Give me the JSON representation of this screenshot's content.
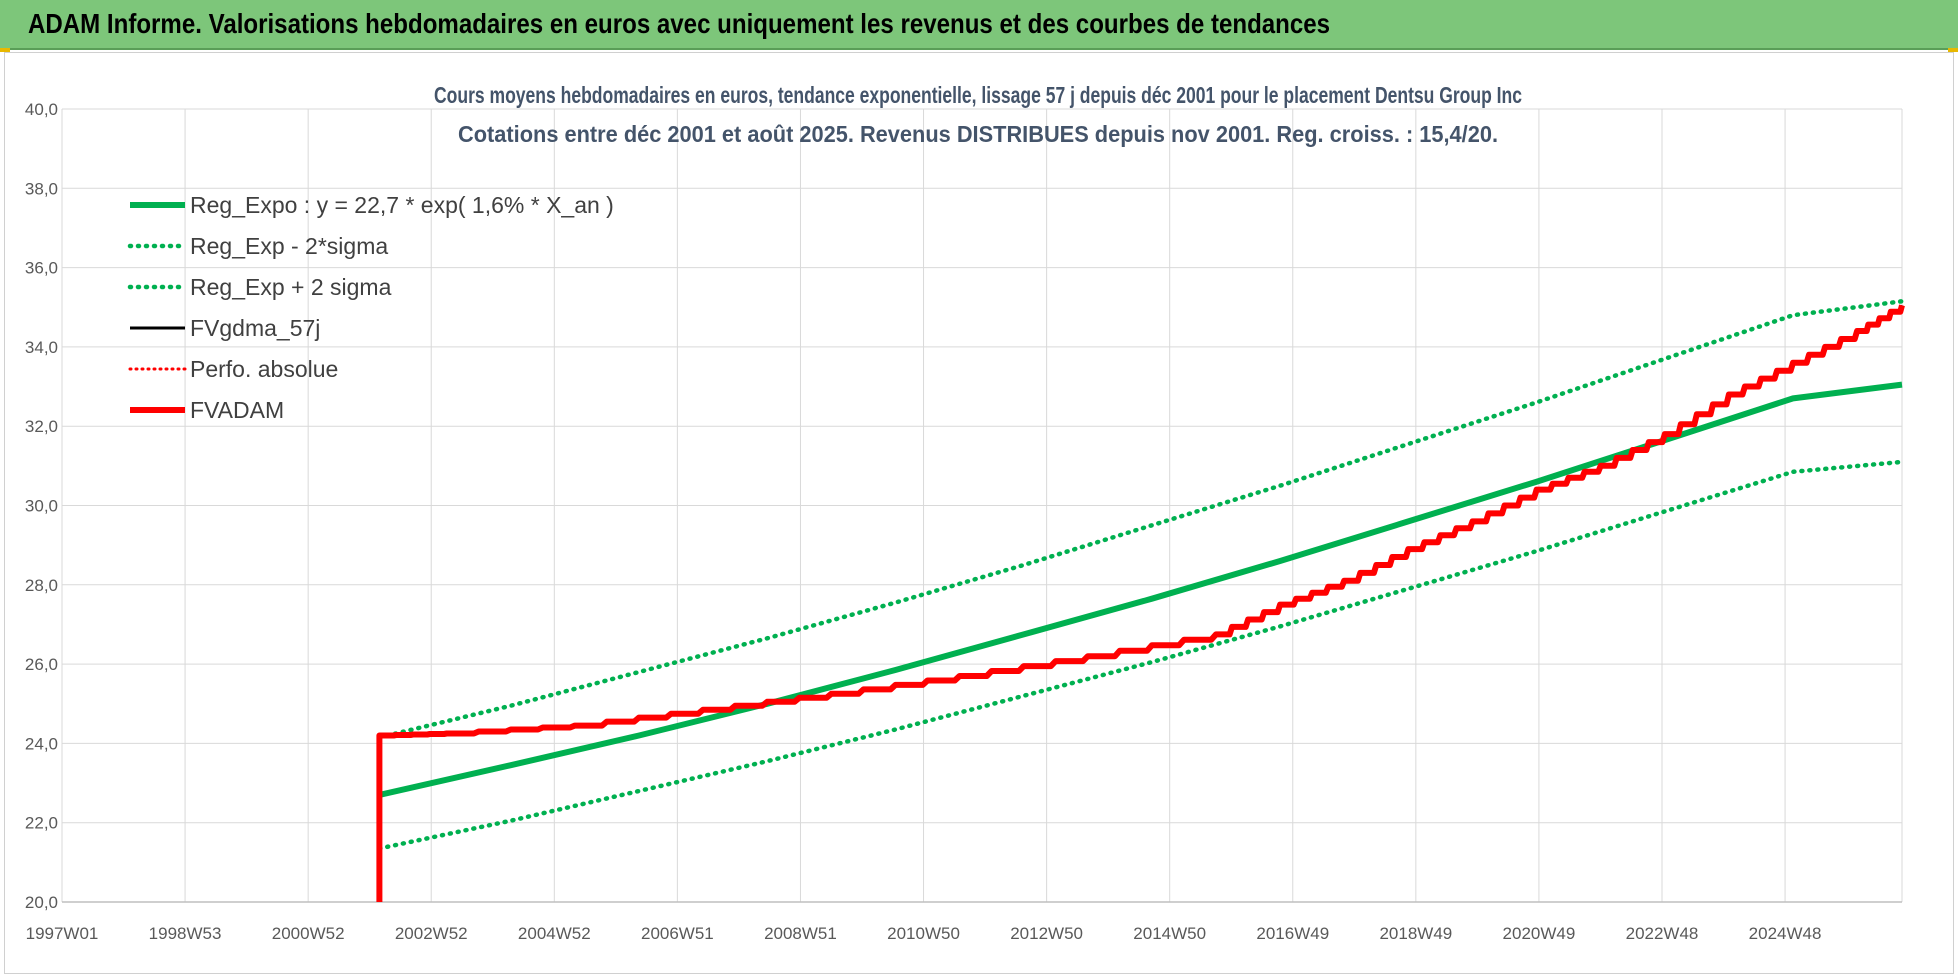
{
  "banner": {
    "title": "ADAM Informe. Valorisations hebdomadaires en euros avec uniquement les revenus et des courbes de tendances"
  },
  "colors": {
    "banner_bg": "#7dc67a",
    "green": "#00b050",
    "red": "#ff0000",
    "black": "#000000",
    "grid": "#d9d9d9"
  },
  "chart_data": {
    "type": "line",
    "title": "Cours moyens hebdomadaires en euros, tendance exponentielle, lissage 57 j depuis déc 2001 pour le placement Dentsu Group Inc",
    "subtitle": "Cotations entre déc 2001 et août 2025. Revenus DISTRIBUES depuis nov 2001. Reg. croiss. : 15,4/20.",
    "xlabel": "",
    "ylabel": "",
    "x_ticks": [
      "1997W01",
      "1998W53",
      "2000W52",
      "2002W52",
      "2004W52",
      "2006W51",
      "2008W51",
      "2010W50",
      "2012W50",
      "2014W50",
      "2016W49",
      "2018W49",
      "2020W49",
      "2022W48",
      "2024W48"
    ],
    "xlim": [
      1997.0,
      2025.7
    ],
    "ylim": [
      20,
      40
    ],
    "y_ticks": [
      "20,0",
      "22,0",
      "24,0",
      "26,0",
      "28,0",
      "30,0",
      "32,0",
      "34,0",
      "36,0",
      "38,0",
      "40,0"
    ],
    "grid": true,
    "legend_position": "top-left",
    "series": [
      {
        "name": "Reg_Expo : y = 22,7 * exp( 1,6% *  X_an )",
        "style": "solid",
        "color": "#00b050",
        "x": [
          2001.95,
          2004,
          2006,
          2008,
          2010,
          2012,
          2014,
          2016,
          2018,
          2020,
          2022,
          2024,
          2025.7
        ],
        "y": [
          22.7,
          23.45,
          24.2,
          25.0,
          25.85,
          26.75,
          27.65,
          28.6,
          29.6,
          30.6,
          31.65,
          32.7,
          33.05
        ]
      },
      {
        "name": "Reg_Exp - 2*sigma",
        "style": "dotted",
        "color": "#00b050",
        "x": [
          2001.95,
          2004,
          2006,
          2008,
          2010,
          2012,
          2014,
          2016,
          2018,
          2020,
          2022,
          2024,
          2025.7
        ],
        "y": [
          21.35,
          22.05,
          22.8,
          23.55,
          24.35,
          25.2,
          26.05,
          26.95,
          27.9,
          28.85,
          29.85,
          30.85,
          31.1
        ]
      },
      {
        "name": "Reg_Exp + 2 sigma",
        "style": "dotted",
        "color": "#00b050",
        "x": [
          2001.95,
          2004,
          2006,
          2008,
          2010,
          2012,
          2014,
          2016,
          2018,
          2020,
          2022,
          2024,
          2025.7
        ],
        "y": [
          24.15,
          24.95,
          25.8,
          26.65,
          27.55,
          28.5,
          29.5,
          30.5,
          31.55,
          32.6,
          33.7,
          34.8,
          35.15
        ]
      },
      {
        "name": "FVgdma_57j",
        "style": "solid",
        "color": "#000000",
        "x": [
          2001.95,
          2001.95,
          2003,
          2005,
          2007,
          2009,
          2011,
          2013,
          2015,
          2016,
          2017,
          2018,
          2019,
          2020,
          2021,
          2022,
          2023,
          2024,
          2025,
          2025.7
        ],
        "y": [
          20.0,
          24.2,
          24.25,
          24.45,
          24.85,
          25.25,
          25.7,
          26.2,
          26.75,
          27.5,
          28.1,
          28.9,
          29.6,
          30.4,
          31.0,
          31.8,
          32.8,
          33.6,
          34.4,
          35.05
        ]
      },
      {
        "name": "Perfo. absolue",
        "style": "dotted",
        "color": "#ff0000",
        "x": [],
        "y": []
      },
      {
        "name": "FVADAM",
        "style": "solid",
        "color": "#ff0000",
        "x": [
          2001.95,
          2001.95,
          2003,
          2005,
          2007,
          2009,
          2011,
          2013,
          2015,
          2016,
          2017,
          2018,
          2019,
          2020,
          2021,
          2022,
          2023,
          2024,
          2025,
          2025.7
        ],
        "y": [
          20.0,
          24.2,
          24.25,
          24.45,
          24.85,
          25.25,
          25.7,
          26.2,
          26.75,
          27.5,
          28.1,
          28.9,
          29.6,
          30.4,
          31.0,
          31.8,
          32.8,
          33.6,
          34.4,
          35.05
        ]
      }
    ]
  }
}
